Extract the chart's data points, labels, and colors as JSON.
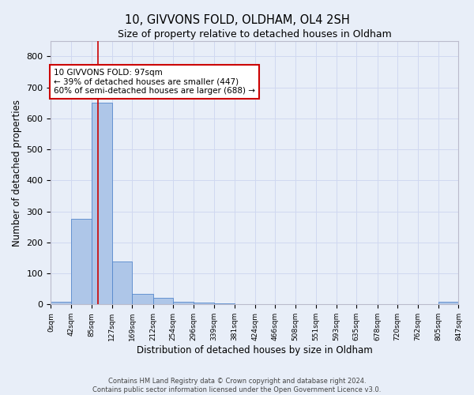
{
  "title1": "10, GIVVONS FOLD, OLDHAM, OL4 2SH",
  "title2": "Size of property relative to detached houses in Oldham",
  "xlabel": "Distribution of detached houses by size in Oldham",
  "ylabel": "Number of detached properties",
  "bin_edges": [
    0,
    42,
    85,
    127,
    169,
    212,
    254,
    296,
    339,
    381,
    424,
    466,
    508,
    551,
    593,
    635,
    678,
    720,
    762,
    805,
    847
  ],
  "bar_heights": [
    8,
    275,
    650,
    138,
    35,
    20,
    8,
    5,
    3,
    2,
    1,
    1,
    0,
    0,
    0,
    0,
    0,
    0,
    0,
    8
  ],
  "bar_color": "#aec6e8",
  "bar_edge_color": "#5588cc",
  "grid_color": "#d0d8f0",
  "background_color": "#e8eef8",
  "red_line_x": 97,
  "annotation_line1": "10 GIVVONS FOLD: 97sqm",
  "annotation_line2": "← 39% of detached houses are smaller (447)",
  "annotation_line3": "60% of semi-detached houses are larger (688) →",
  "annotation_box_color": "#ffffff",
  "annotation_box_edge_color": "#cc0000",
  "ylim": [
    0,
    850
  ],
  "yticks": [
    0,
    100,
    200,
    300,
    400,
    500,
    600,
    700,
    800
  ],
  "tick_labels": [
    "0sqm",
    "42sqm",
    "85sqm",
    "127sqm",
    "169sqm",
    "212sqm",
    "254sqm",
    "296sqm",
    "339sqm",
    "381sqm",
    "424sqm",
    "466sqm",
    "508sqm",
    "551sqm",
    "593sqm",
    "635sqm",
    "678sqm",
    "720sqm",
    "762sqm",
    "805sqm",
    "847sqm"
  ],
  "footer1": "Contains HM Land Registry data © Crown copyright and database right 2024.",
  "footer2": "Contains public sector information licensed under the Open Government Licence v3.0."
}
